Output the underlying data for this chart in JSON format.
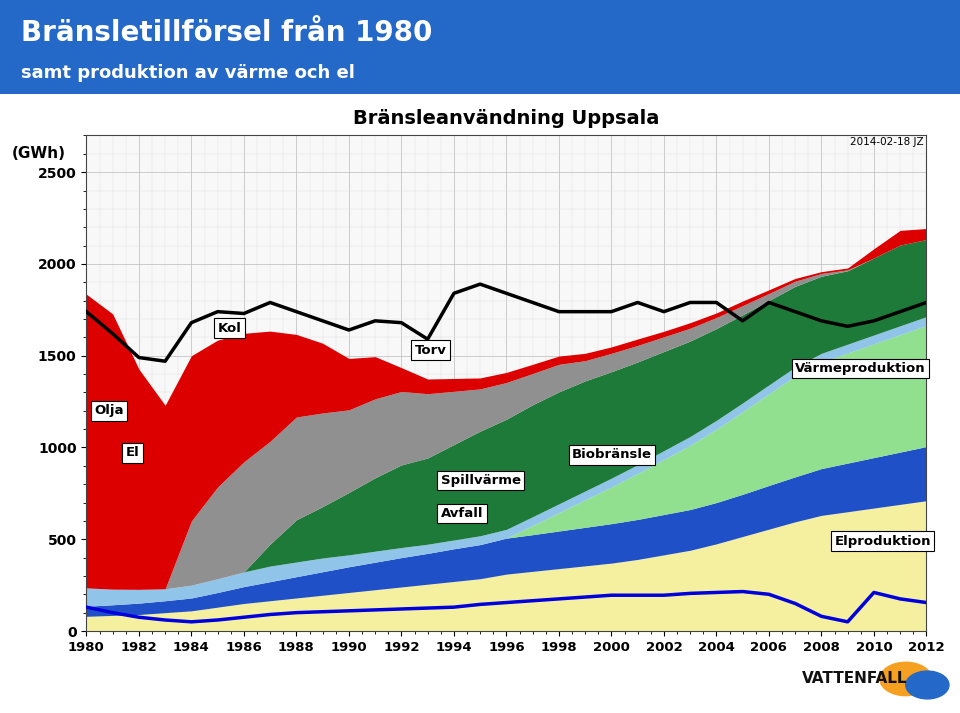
{
  "years": [
    1980,
    1981,
    1982,
    1983,
    1984,
    1985,
    1986,
    1987,
    1988,
    1989,
    1990,
    1991,
    1992,
    1993,
    1994,
    1995,
    1996,
    1997,
    1998,
    1999,
    2000,
    2001,
    2002,
    2003,
    2004,
    2005,
    2006,
    2007,
    2008,
    2009,
    2010,
    2011,
    2012
  ],
  "olja": [
    1600,
    1500,
    1200,
    1000,
    900,
    800,
    700,
    600,
    450,
    380,
    280,
    230,
    130,
    80,
    70,
    60,
    55,
    50,
    45,
    40,
    35,
    35,
    30,
    30,
    25,
    25,
    20,
    15,
    10,
    10,
    50,
    80,
    60
  ],
  "kol": [
    0,
    0,
    0,
    0,
    350,
    500,
    600,
    560,
    560,
    510,
    450,
    430,
    400,
    350,
    290,
    230,
    200,
    170,
    150,
    110,
    100,
    90,
    80,
    70,
    60,
    50,
    38,
    28,
    15,
    5,
    0,
    0,
    0
  ],
  "el": [
    100,
    85,
    75,
    65,
    70,
    75,
    80,
    85,
    80,
    75,
    65,
    60,
    55,
    50,
    48,
    48,
    48,
    48,
    48,
    48,
    48,
    48,
    48,
    48,
    48,
    48,
    48,
    48,
    48,
    48,
    48,
    48,
    48
  ],
  "torv": [
    0,
    0,
    0,
    0,
    0,
    0,
    0,
    120,
    230,
    280,
    340,
    400,
    450,
    470,
    520,
    570,
    600,
    610,
    610,
    600,
    580,
    560,
    540,
    520,
    500,
    480,
    460,
    440,
    420,
    400,
    420,
    440,
    420
  ],
  "avfall": [
    80,
    85,
    90,
    100,
    110,
    130,
    150,
    165,
    180,
    195,
    210,
    225,
    240,
    255,
    270,
    285,
    310,
    325,
    340,
    355,
    370,
    390,
    415,
    440,
    475,
    515,
    555,
    595,
    630,
    650,
    670,
    690,
    710
  ],
  "spillvarme": [
    55,
    58,
    62,
    65,
    70,
    80,
    92,
    104,
    116,
    128,
    140,
    150,
    160,
    168,
    178,
    186,
    196,
    200,
    205,
    210,
    215,
    218,
    220,
    222,
    225,
    230,
    238,
    245,
    255,
    265,
    275,
    285,
    295
  ],
  "biobransle": [
    0,
    0,
    0,
    0,
    0,
    0,
    0,
    0,
    0,
    0,
    0,
    0,
    0,
    0,
    0,
    0,
    0,
    50,
    100,
    150,
    200,
    250,
    300,
    350,
    400,
    450,
    500,
    550,
    580,
    600,
    620,
    640,
    660
  ],
  "varmeproduktion": [
    1740,
    1620,
    1490,
    1470,
    1680,
    1740,
    1730,
    1790,
    1740,
    1690,
    1640,
    1690,
    1680,
    1590,
    1840,
    1890,
    1840,
    1790,
    1740,
    1740,
    1740,
    1790,
    1740,
    1790,
    1790,
    1690,
    1790,
    1740,
    1690,
    1660,
    1690,
    1740,
    1790
  ],
  "elproduktion": [
    130,
    100,
    75,
    60,
    50,
    60,
    75,
    90,
    100,
    105,
    110,
    115,
    120,
    125,
    130,
    145,
    155,
    165,
    175,
    185,
    195,
    195,
    195,
    205,
    210,
    215,
    200,
    150,
    80,
    50,
    210,
    175,
    155
  ],
  "title": "Bränsleanvändning Uppsala",
  "header_title": "Bränsletillförsel från 1980",
  "header_subtitle": "samt produktion av värme och el",
  "ylabel": "(GWh)",
  "date_label": "2014-02-18 JZ",
  "header_color": "#2468C8",
  "color_olja": "#DD0000",
  "color_kol": "#909090",
  "color_el": "#90C4E8",
  "color_torv": "#1E7A38",
  "color_avfall": "#F5F0A0",
  "color_spillvarme": "#2050C8",
  "color_biobransle": "#90E090",
  "color_varmeproduktion": "#000000",
  "color_elproduktion": "#0000DD",
  "ylim": [
    0,
    2700
  ],
  "yticks": [
    0,
    500,
    1000,
    1500,
    2000,
    2500
  ],
  "xticks": [
    1980,
    1982,
    1984,
    1986,
    1988,
    1990,
    1992,
    1994,
    1996,
    1998,
    2000,
    2002,
    2004,
    2006,
    2008,
    2010,
    2012
  ]
}
